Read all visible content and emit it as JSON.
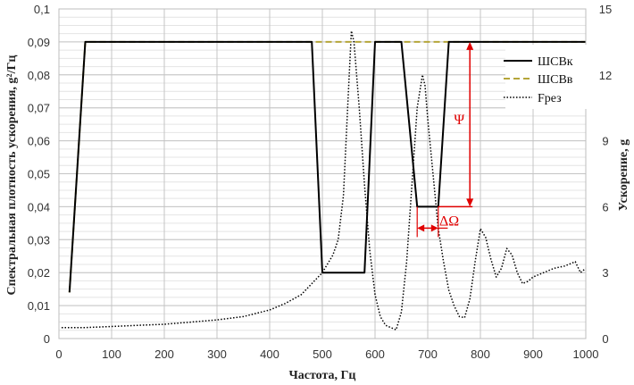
{
  "chart_data": {
    "type": "line",
    "title": "",
    "xlabel": "Частота, Гц",
    "ylabel_left": "Спектральная плотность ускорения, g²/Гц",
    "ylabel_right": "Ускорение, g",
    "xlim": [
      0,
      1000
    ],
    "ylim_left": [
      0,
      0.1
    ],
    "ylim_right": [
      0,
      15
    ],
    "x_ticks": [
      "0",
      "100",
      "200",
      "300",
      "400",
      "500",
      "600",
      "700",
      "800",
      "900",
      "1000"
    ],
    "y_left_ticks": [
      "0",
      "0,01",
      "0,02",
      "0,03",
      "0,04",
      "0,05",
      "0,06",
      "0,07",
      "0,08",
      "0,09",
      "0,1"
    ],
    "y_right_ticks": [
      "0",
      "3",
      "6",
      "9",
      "12",
      "15"
    ],
    "grid": true,
    "legend_position": "top-right",
    "series": [
      {
        "name": "ШСВк",
        "axis": "left",
        "color": "#000000",
        "style": "solid",
        "x": [
          20,
          50,
          480,
          500,
          580,
          600,
          650,
          680,
          720,
          740,
          1000
        ],
        "y": [
          0.014,
          0.09,
          0.09,
          0.02,
          0.02,
          0.09,
          0.09,
          0.04,
          0.04,
          0.09,
          0.09
        ]
      },
      {
        "name": "ШСВв",
        "axis": "left",
        "color": "#b5a63a",
        "style": "dashed",
        "x": [
          20,
          50,
          1000
        ],
        "y": [
          0.014,
          0.09,
          0.09
        ]
      },
      {
        "name": "Fрез",
        "axis": "right",
        "color": "#000000",
        "style": "dotted",
        "x": [
          5,
          50,
          100,
          150,
          200,
          250,
          300,
          350,
          400,
          430,
          460,
          480,
          500,
          520,
          530,
          540,
          550,
          555,
          560,
          570,
          580,
          590,
          600,
          610,
          620,
          630,
          640,
          650,
          660,
          670,
          680,
          690,
          695,
          700,
          710,
          720,
          730,
          740,
          750,
          760,
          770,
          780,
          790,
          800,
          810,
          820,
          830,
          840,
          850,
          860,
          870,
          880,
          890,
          900,
          920,
          940,
          960,
          970,
          980,
          990,
          1000
        ],
        "y": [
          0.5,
          0.5,
          0.55,
          0.6,
          0.65,
          0.75,
          0.85,
          1.0,
          1.3,
          1.6,
          2.0,
          2.5,
          3.0,
          3.8,
          4.5,
          6.5,
          11.5,
          14.0,
          13.5,
          10.5,
          7.0,
          4.0,
          2.0,
          1.0,
          0.6,
          0.5,
          0.4,
          1.2,
          3.5,
          7.0,
          10.5,
          12.0,
          11.5,
          10.0,
          7.5,
          5.0,
          3.5,
          2.2,
          1.5,
          1.0,
          0.95,
          1.8,
          3.5,
          5.0,
          4.6,
          3.6,
          2.8,
          3.2,
          4.1,
          3.8,
          3.0,
          2.5,
          2.6,
          2.8,
          3.0,
          3.2,
          3.3,
          3.4,
          3.5,
          3.0,
          3.2
        ]
      }
    ],
    "annotations": {
      "psi": "Ψ",
      "delta_omega": "ΔΩ"
    }
  }
}
